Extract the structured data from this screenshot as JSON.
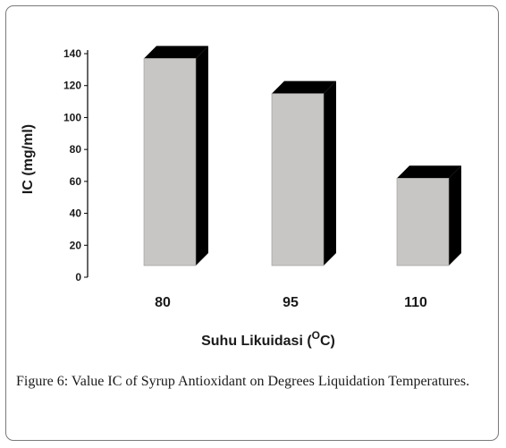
{
  "chart_data": {
    "type": "bar",
    "categories": [
      "80",
      "95",
      "110"
    ],
    "values": [
      137,
      115,
      62
    ],
    "xlabel": "Suhu Likuidasi (",
    "xlabel_superscript": "O",
    "xlabel_suffix": "C)",
    "ylabel": "IC (mg/ml)",
    "ylim": [
      0,
      140
    ],
    "yticks": [
      "0",
      "20",
      "40",
      "60",
      "80",
      "100",
      "120",
      "140"
    ],
    "grid": false,
    "legend": "none",
    "style": "3d-column",
    "colors": {
      "face": "#c8c6c4",
      "side": "#000000",
      "axis": "#000000"
    }
  },
  "caption": {
    "label": "Figure 6:",
    "text": " Value IC of Syrup Antioxidant on Degrees Liquidation Temperatures."
  }
}
